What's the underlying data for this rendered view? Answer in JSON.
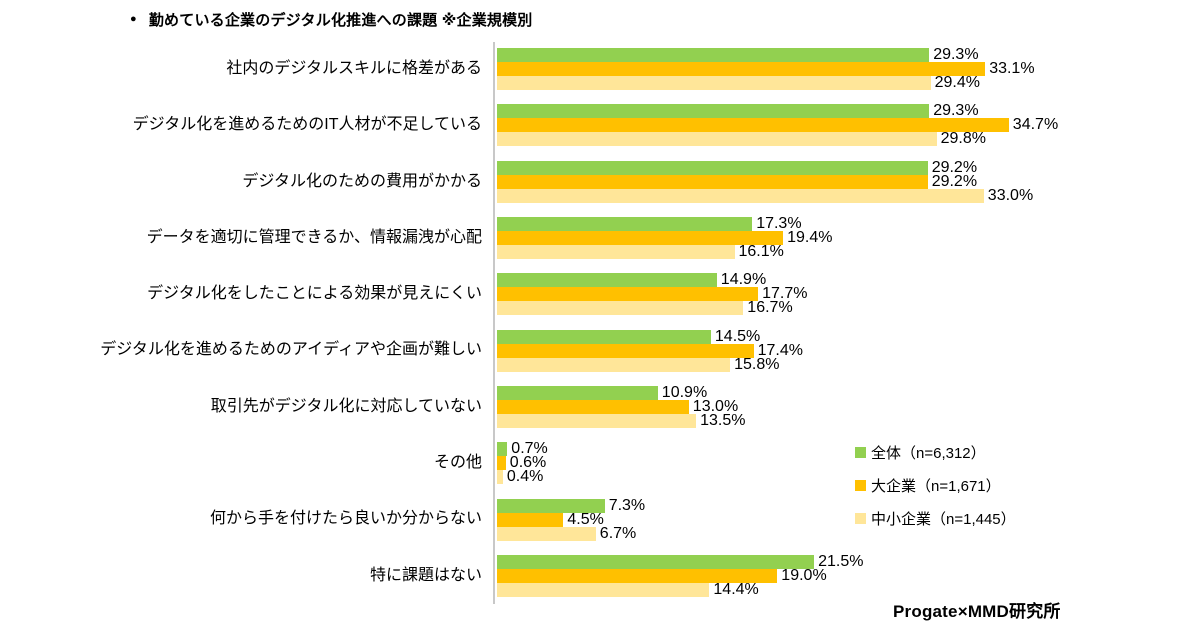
{
  "title": {
    "bullet": "●",
    "text": "勤めている企業のデジタル化推進への課題 ※企業規模別"
  },
  "footer": {
    "credit": "Progate×MMD研究所"
  },
  "colors": {
    "overall": "#92d050",
    "large_company": "#ffc000",
    "sme": "#ffe699",
    "axis": "#c8c8c8"
  },
  "chart_data": {
    "type": "bar",
    "orientation": "horizontal",
    "title": "勤めている企業のデジタル化推進への課題 ※企業規模別",
    "categories": [
      "社内のデジタルスキルに格差がある",
      "デジタル化を進めるためのIT人材が不足している",
      "デジタル化のための費用がかかる",
      "データを適切に管理できるか、情報漏洩が心配",
      "デジタル化をしたことによる効果が見えにくい",
      "デジタル化を進めるためのアイディアや企画が難しい",
      "取引先がデジタル化に対応していない",
      "その他",
      "何から手を付けたら良いか分からない",
      "特に課題はない"
    ],
    "series": [
      {
        "name": "全体（n=6,312）",
        "color": "#92d050",
        "values": [
          29.3,
          29.3,
          29.2,
          17.3,
          14.9,
          14.5,
          10.9,
          0.7,
          7.3,
          21.5
        ],
        "labels": [
          "29.3%",
          "29.3%",
          "29.2%",
          "17.3%",
          "14.9%",
          "14.5%",
          "10.9%",
          "0.7%",
          "7.3%",
          "21.5%"
        ]
      },
      {
        "name": "大企業（n=1,671）",
        "color": "#ffc000",
        "values": [
          33.1,
          34.7,
          29.2,
          19.4,
          17.7,
          17.4,
          13.0,
          0.6,
          4.5,
          19.0
        ],
        "labels": [
          "33.1%",
          "34.7%",
          "29.2%",
          "19.4%",
          "17.7%",
          "17.4%",
          "13.0%",
          "0.6%",
          "4.5%",
          "19.0%"
        ]
      },
      {
        "name": "中小企業（n=1,445）",
        "color": "#ffe699",
        "values": [
          29.4,
          29.8,
          33.0,
          16.1,
          16.7,
          15.8,
          13.5,
          0.4,
          6.7,
          14.4
        ],
        "labels": [
          "29.4%",
          "29.8%",
          "33.0%",
          "16.1%",
          "16.7%",
          "15.8%",
          "13.5%",
          "0.4%",
          "6.7%",
          "14.4%"
        ]
      }
    ],
    "xlim": [
      0,
      40
    ],
    "grid": false,
    "legend_position": "middle-right",
    "value_labels": "outside-end"
  }
}
